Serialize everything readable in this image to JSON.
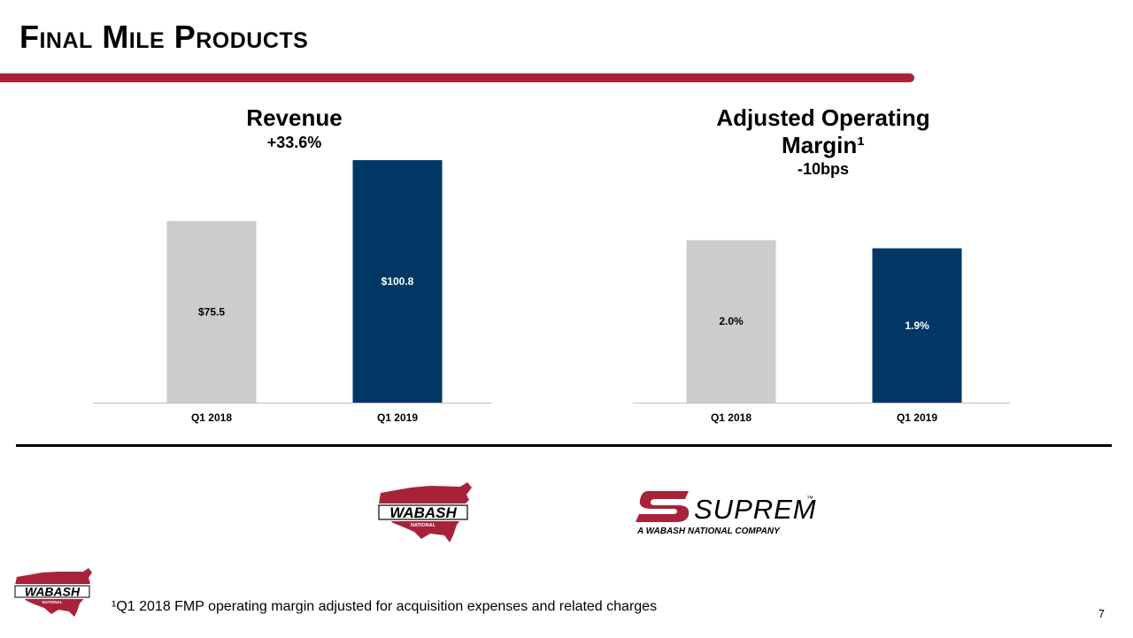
{
  "slide": {
    "title": "Final Mile Products",
    "accent_color": "#a8223a",
    "footnote": "¹Q1 2018 FMP operating margin adjusted for acquisition expenses and related charges",
    "page_number": "7"
  },
  "logos": {
    "wabash_center": {
      "word": "WABASH",
      "sub": "NATIONAL"
    },
    "supreme": {
      "word": "SUPREME",
      "tm": "™",
      "tagline": "A WABASH NATIONAL COMPANY"
    },
    "wabash_corner": {
      "word": "WABASH",
      "sub": "NATIONAL"
    }
  },
  "chart_data": [
    {
      "type": "bar",
      "title": "Revenue",
      "subtitle": "+33.6%",
      "categories": [
        "Q1 2018",
        "Q1 2019"
      ],
      "values": [
        75.5,
        100.8
      ],
      "labels": [
        "$75.5",
        "$100.8"
      ],
      "colors": [
        "#cccccc",
        "#003764"
      ],
      "label_colors": [
        "#000000",
        "#ffffff"
      ],
      "ylim": [
        0,
        100.8
      ]
    },
    {
      "type": "bar",
      "title": "Adjusted Operating Margin¹",
      "title_lines": [
        "Adjusted Operating",
        "Margin¹"
      ],
      "subtitle": "-10bps",
      "categories": [
        "Q1 2018",
        "Q1 2019"
      ],
      "values": [
        2.0,
        1.9
      ],
      "labels": [
        "2.0%",
        "1.9%"
      ],
      "colors": [
        "#cccccc",
        "#003764"
      ],
      "label_colors": [
        "#000000",
        "#ffffff"
      ],
      "ylim": [
        0,
        2.8
      ]
    }
  ]
}
